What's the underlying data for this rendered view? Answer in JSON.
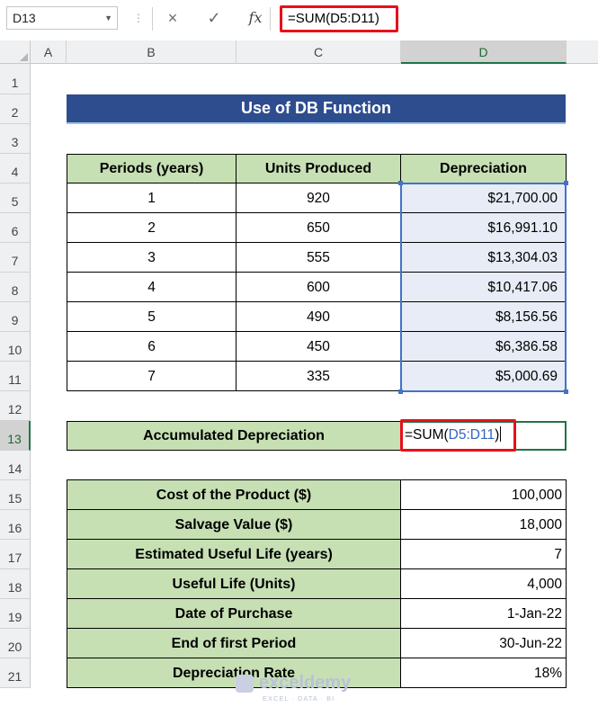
{
  "formula_bar": {
    "name_box": "D13",
    "cancel_icon": "×",
    "enter_icon": "✓",
    "fx_label": "fx",
    "formula": "=SUM(D5:D11)"
  },
  "columns": [
    "A",
    "B",
    "C",
    "D"
  ],
  "rows": [
    "1",
    "2",
    "3",
    "4",
    "5",
    "6",
    "7",
    "8",
    "9",
    "10",
    "11",
    "12",
    "13",
    "14",
    "15",
    "16",
    "17",
    "18",
    "19",
    "20",
    "21"
  ],
  "sheet": {
    "title": "Use of DB Function",
    "table_headers": [
      "Periods (years)",
      "Units Produced",
      "Depreciation"
    ],
    "table_rows": [
      {
        "period": "1",
        "units": "920",
        "depreciation": "$21,700.00"
      },
      {
        "period": "2",
        "units": "650",
        "depreciation": "$16,991.10"
      },
      {
        "period": "3",
        "units": "555",
        "depreciation": "$13,304.03"
      },
      {
        "period": "4",
        "units": "600",
        "depreciation": "$10,417.06"
      },
      {
        "period": "5",
        "units": "490",
        "depreciation": "$8,156.56"
      },
      {
        "period": "6",
        "units": "450",
        "depreciation": "$6,386.58"
      },
      {
        "period": "7",
        "units": "335",
        "depreciation": "$5,000.69"
      }
    ],
    "accum_label": "Accumulated Depreciation",
    "accum_formula_prefix": "=SUM(",
    "accum_formula_ref": "D5:D11",
    "accum_formula_suffix": ")",
    "info_rows": [
      {
        "label": "Cost of the Product ($)",
        "value": "100,000"
      },
      {
        "label": "Salvage Value ($)",
        "value": "18,000"
      },
      {
        "label": "Estimated Useful Life (years)",
        "value": "7"
      },
      {
        "label": "Useful Life (Units)",
        "value": "4,000"
      },
      {
        "label": "Date of Purchase",
        "value": "1-Jan-22"
      },
      {
        "label": "End of first Period",
        "value": "30-Jun-22"
      },
      {
        "label": "Depreciation Rate",
        "value": "18%"
      }
    ]
  },
  "watermark": {
    "name": "exceldemy",
    "tagline": "EXCEL · DATA · BI"
  },
  "colors": {
    "title_bg": "#2e4d8f",
    "header_green": "#c6e0b4",
    "highlight_red": "#e8101c",
    "selection_blue": "#4472c4",
    "excel_green": "#217346"
  }
}
